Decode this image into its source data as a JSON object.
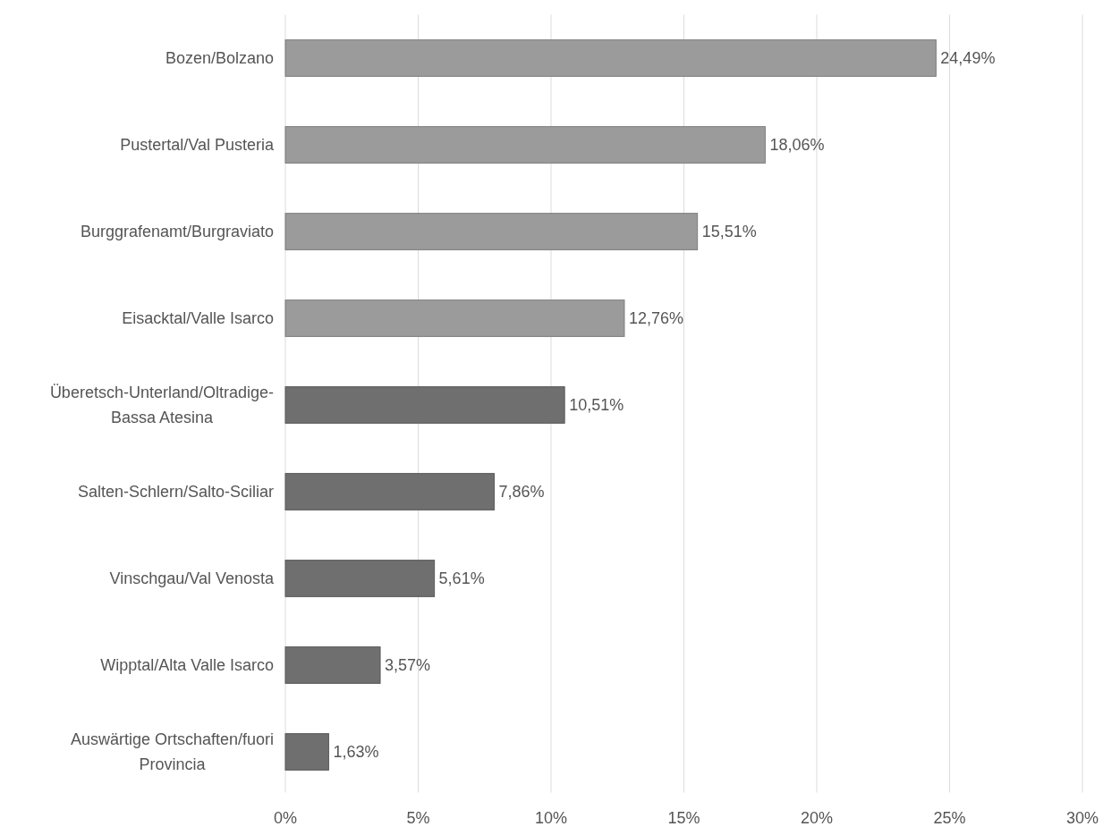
{
  "chart_data": {
    "type": "bar",
    "orientation": "horizontal",
    "categories": [
      "Bozen/Bolzano",
      "Pustertal/Val Pusteria",
      "Burggrafenamt/Burgraviato",
      "Eisacktal/Valle Isarco",
      "Überetsch-Unterland/Oltradige-Bassa Atesina",
      "Salten-Schlern/Salto-Sciliar",
      "Vinschgau/Val Venosta",
      "Wipptal/Alta Valle Isarco",
      "Auswärtige Ortschaften/fuori Provincia"
    ],
    "values": [
      24.49,
      18.06,
      15.51,
      12.76,
      10.51,
      7.86,
      5.61,
      3.57,
      1.63
    ],
    "value_labels": [
      "24,49%",
      "18,06%",
      "15,51%",
      "12,76%",
      "10,51%",
      "7,86%",
      "5,61%",
      "3,57%",
      "1,63%"
    ],
    "colors": [
      "#9b9b9b",
      "#9b9b9b",
      "#9b9b9b",
      "#9b9b9b",
      "#6f6f6f",
      "#6f6f6f",
      "#6f6f6f",
      "#6f6f6f",
      "#6f6f6f"
    ],
    "xlim": [
      0,
      30
    ],
    "xticks": [
      {
        "value": 0,
        "label": "0%"
      },
      {
        "value": 5,
        "label": "5%"
      },
      {
        "value": 10,
        "label": "10%"
      },
      {
        "value": 15,
        "label": "15%"
      },
      {
        "value": 20,
        "label": "20%"
      },
      {
        "value": 25,
        "label": "25%"
      },
      {
        "value": 30,
        "label": "30%"
      }
    ],
    "grid": "x"
  }
}
